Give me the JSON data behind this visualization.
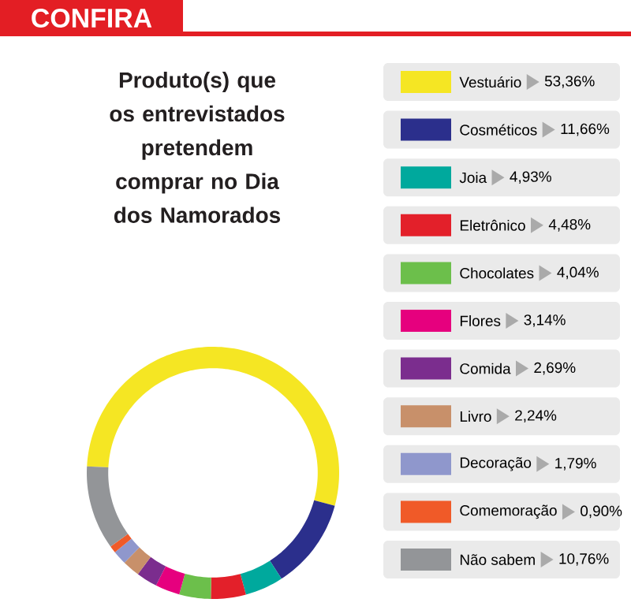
{
  "chart_data": {
    "type": "donut",
    "title": "CONFIRA",
    "subtitle": "Produto(s) que os entrevistados pretendem comprar no Dia dos Namorados",
    "categories": [
      "Vestuário",
      "Cosméticos",
      "Joia",
      "Eletrônico",
      "Chocolates",
      "Flores",
      "Comida",
      "Livro",
      "Decoração",
      "Comemoração",
      "Não sabem"
    ],
    "values": [
      53.36,
      11.66,
      4.93,
      4.48,
      4.04,
      3.14,
      2.69,
      2.24,
      1.79,
      0.9,
      10.76
    ],
    "colors": [
      "#f5e623",
      "#2b2f8c",
      "#00a99d",
      "#e3202a",
      "#6cbf4b",
      "#e6007e",
      "#7b2d8e",
      "#c8906a",
      "#8f97cc",
      "#f05a28",
      "#939598"
    ],
    "value_labels": [
      "53,36%",
      "11,66%",
      "4,93%",
      "4,48%",
      "4,04%",
      "3,14%",
      "2,69%",
      "2,24%",
      "1,79%",
      "0,90%",
      "10,76%"
    ],
    "legend": "right"
  }
}
